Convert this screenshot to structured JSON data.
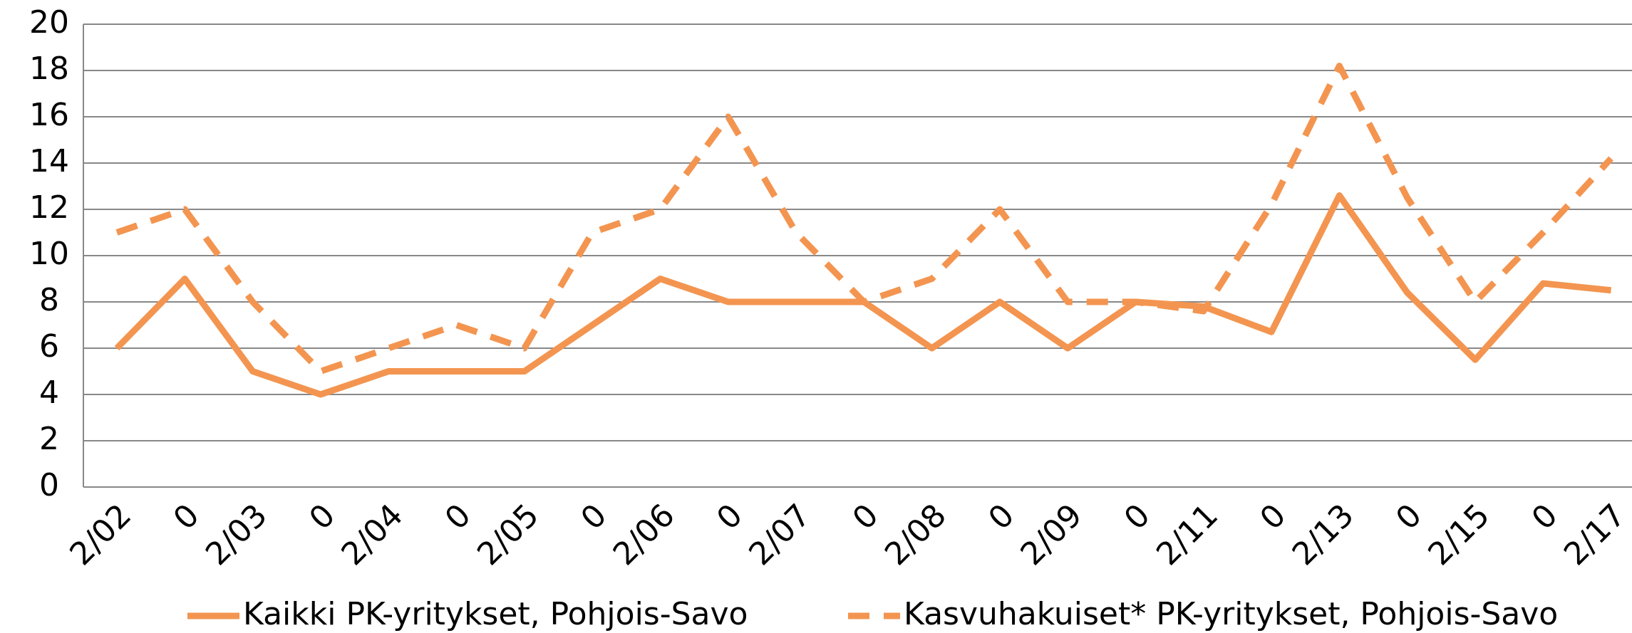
{
  "chart_data": {
    "type": "line",
    "categories": [
      "2/02",
      "0",
      "2/03",
      "0",
      "2/04",
      "0",
      "2/05",
      "0",
      "2/06",
      "0",
      "2/07",
      "0",
      "2/08",
      "0",
      "2/09",
      "0",
      "2/11",
      "0",
      "2/13",
      "0",
      "2/15",
      "0",
      "2/17"
    ],
    "series": [
      {
        "name": "Kaikki PK-yritykset, Pohjois-Savo",
        "color": "#f39550",
        "dash": false,
        "values": [
          6,
          9,
          5,
          4,
          5,
          5,
          5,
          7,
          9,
          8,
          8,
          8,
          6,
          8,
          6,
          8,
          7.8,
          6.7,
          12.6,
          8.4,
          5.5,
          8.8,
          8.5
        ]
      },
      {
        "name": "Kasvuhakuiset* PK-yritykset, Pohjois-Savo",
        "color": "#f39550",
        "dash": true,
        "values": [
          11,
          12,
          8,
          5,
          6,
          7,
          6,
          11,
          12,
          16,
          11,
          8,
          9,
          12,
          8,
          8,
          7.6,
          12.2,
          18.2,
          12.5,
          8,
          11,
          14.2
        ]
      }
    ],
    "ylim": [
      0,
      20
    ],
    "yticks": [
      0,
      2,
      4,
      6,
      8,
      10,
      12,
      14,
      16,
      18,
      20
    ],
    "grid": true,
    "legend": "bottom"
  }
}
